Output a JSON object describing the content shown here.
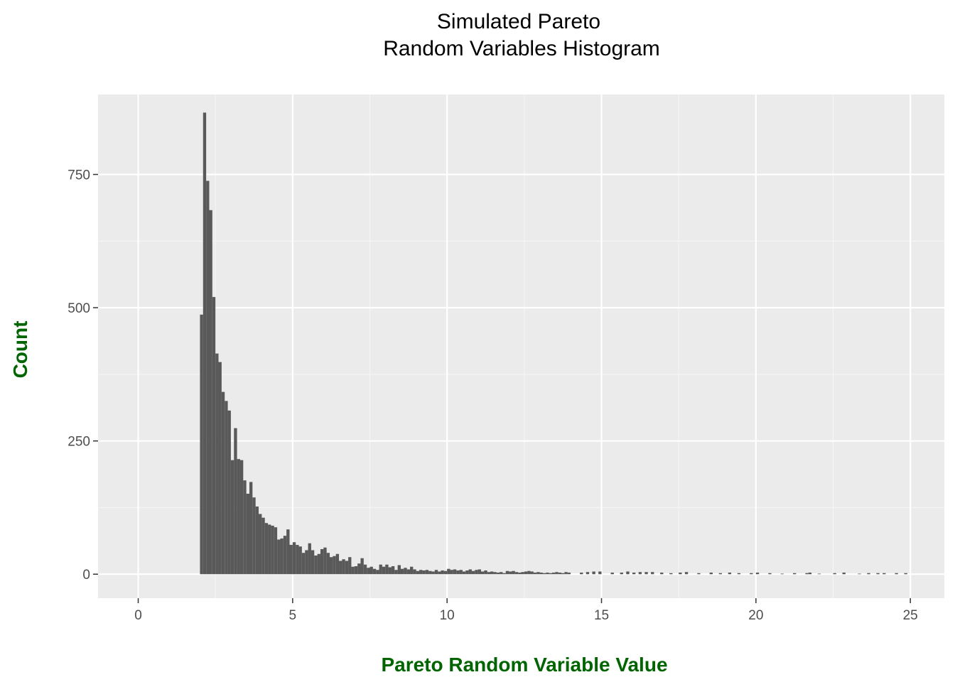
{
  "chart_data": {
    "type": "bar",
    "title_lines": [
      "Simulated Pareto",
      "Random Variables Histogram"
    ],
    "xlabel": "Pareto Random Variable Value",
    "ylabel": "Count",
    "xlim": [
      -1.3,
      26.1
    ],
    "ylim": [
      -45,
      900
    ],
    "x_ticks": [
      0,
      5,
      10,
      15,
      20,
      25
    ],
    "x_tick_labels": [
      "0",
      "5",
      "10",
      "15",
      "20",
      "25"
    ],
    "y_ticks": [
      0,
      250,
      500,
      750
    ],
    "y_tick_labels": [
      "0",
      "250",
      "500",
      "750"
    ],
    "grid": true,
    "colors": {
      "panel_background": "#ebebeb",
      "grid_major": "#ffffff",
      "grid_minor": "#f5f5f5",
      "bars": "#595959",
      "tick_labels": "#4d4d4d",
      "axis_titles": "#006400"
    },
    "bin_width": 0.1,
    "bins": {
      "x_start": 2.0,
      "counts": [
        487,
        866,
        738,
        683,
        520,
        414,
        398,
        342,
        325,
        307,
        214,
        274,
        216,
        214,
        176,
        151,
        173,
        144,
        127,
        113,
        106,
        96,
        93,
        91,
        88,
        65,
        67,
        72,
        84,
        55,
        60,
        55,
        52,
        40,
        45,
        58,
        45,
        35,
        38,
        47,
        50,
        40,
        32,
        34,
        38,
        25,
        28,
        25,
        32,
        14,
        15,
        20,
        30,
        18,
        12,
        14,
        10,
        8,
        18,
        14,
        18,
        13,
        15,
        8,
        17,
        10,
        12,
        9,
        14,
        9,
        6,
        8,
        7,
        8,
        6,
        5,
        8,
        5,
        7,
        6,
        10,
        8,
        9,
        7,
        8,
        5,
        7,
        9,
        6,
        8,
        9,
        5,
        7,
        4,
        5,
        4,
        3,
        4,
        2,
        6,
        5,
        6,
        4,
        3,
        4,
        5,
        6,
        5,
        3,
        4,
        3,
        2,
        3,
        2,
        3,
        4,
        3,
        2,
        4,
        3
      ],
      "sparse_tail": [
        [
          14.3,
          3
        ],
        [
          14.5,
          4
        ],
        [
          14.7,
          5
        ],
        [
          14.9,
          5
        ],
        [
          15.3,
          3
        ],
        [
          15.6,
          3
        ],
        [
          15.8,
          5
        ],
        [
          16.0,
          3
        ],
        [
          16.2,
          4
        ],
        [
          16.4,
          4
        ],
        [
          16.6,
          4
        ],
        [
          16.9,
          3
        ],
        [
          17.2,
          2
        ],
        [
          17.5,
          3
        ],
        [
          17.7,
          4
        ],
        [
          18.1,
          2
        ],
        [
          18.5,
          3
        ],
        [
          18.8,
          2
        ],
        [
          19.1,
          3
        ],
        [
          19.4,
          2
        ],
        [
          19.8,
          2
        ],
        [
          20.0,
          3
        ],
        [
          20.4,
          2
        ],
        [
          20.8,
          1
        ],
        [
          21.2,
          2
        ],
        [
          21.6,
          2
        ],
        [
          21.7,
          3
        ],
        [
          22.0,
          1
        ],
        [
          22.5,
          2
        ],
        [
          22.8,
          3
        ],
        [
          23.3,
          1
        ],
        [
          23.6,
          2
        ],
        [
          23.9,
          2
        ],
        [
          24.1,
          2
        ],
        [
          24.5,
          2
        ],
        [
          24.8,
          2
        ]
      ]
    }
  }
}
